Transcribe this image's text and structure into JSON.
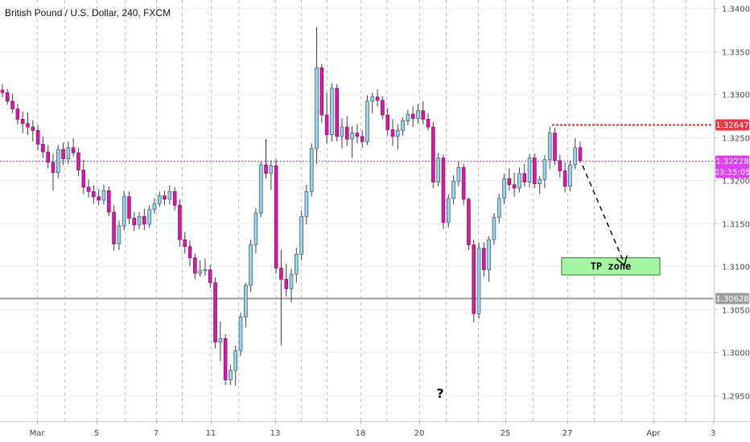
{
  "header": {
    "title": "British Pound / U.S. Dollar, 240, FXCM"
  },
  "annotations": {
    "tp_zone": "TP zone",
    "question": "?"
  },
  "colors": {
    "up_fill": "#9bd1e6",
    "up_border": "#2f5e73",
    "down_fill": "#d41aa6",
    "down_border": "#8a1370",
    "wick": "#444444",
    "target_line": "#e53935",
    "current_line": "#e040fb",
    "support_line": "#9e9e9e",
    "tp_fill": "#a5f5a5",
    "badge_red": "#f23645",
    "badge_magenta": "#e040fb",
    "badge_grey": "#9e9e9e"
  },
  "price_labels": {
    "target": "1.32647",
    "current": "1.32228",
    "countdown": "03:35:05",
    "support": "1.30628"
  },
  "chart_data": {
    "type": "candlestick",
    "title": "British Pound / U.S. Dollar, 240, FXCM",
    "ylim": [
      1.2935,
      1.3405
    ],
    "y_ticks": [
      "1.34000",
      "1.33500",
      "1.33000",
      "1.32500",
      "1.32000",
      "1.31500",
      "1.31000",
      "1.30500",
      "1.30000",
      "1.29500"
    ],
    "x_ticks": [
      "Mar",
      "5",
      "7",
      "11",
      "13",
      "18",
      "20",
      "25",
      "27",
      "Apr",
      "3"
    ],
    "grid": true,
    "levels": {
      "target": 1.32647,
      "current": 1.32228,
      "support": 1.30628
    },
    "tp_zone": {
      "low": 1.309,
      "high": 1.311
    },
    "candles": [
      [
        1.3305,
        1.3312,
        1.3297,
        1.3302
      ],
      [
        1.3302,
        1.3306,
        1.3288,
        1.3292
      ],
      [
        1.3292,
        1.3301,
        1.3278,
        1.3283
      ],
      [
        1.3283,
        1.3289,
        1.3265,
        1.3271
      ],
      [
        1.3271,
        1.328,
        1.3255,
        1.3266
      ],
      [
        1.3266,
        1.3279,
        1.3253,
        1.3262
      ],
      [
        1.3262,
        1.327,
        1.3245,
        1.3258
      ],
      [
        1.3258,
        1.3264,
        1.3235,
        1.3242
      ],
      [
        1.3242,
        1.3251,
        1.3226,
        1.3233
      ],
      [
        1.3233,
        1.3241,
        1.3214,
        1.3221
      ],
      [
        1.3221,
        1.3231,
        1.3188,
        1.3209
      ],
      [
        1.3209,
        1.3241,
        1.3202,
        1.3236
      ],
      [
        1.3236,
        1.3244,
        1.3218,
        1.3225
      ],
      [
        1.3225,
        1.3245,
        1.3219,
        1.3238
      ],
      [
        1.3238,
        1.3249,
        1.3227,
        1.3232
      ],
      [
        1.3232,
        1.3238,
        1.3205,
        1.3212
      ],
      [
        1.3212,
        1.3224,
        1.3184,
        1.3192
      ],
      [
        1.3192,
        1.3201,
        1.318,
        1.3187
      ],
      [
        1.3187,
        1.3194,
        1.3173,
        1.3181
      ],
      [
        1.3181,
        1.319,
        1.3171,
        1.3177
      ],
      [
        1.3177,
        1.3195,
        1.3172,
        1.3188
      ],
      [
        1.3188,
        1.3193,
        1.3158,
        1.3163
      ],
      [
        1.3163,
        1.3171,
        1.3118,
        1.3126
      ],
      [
        1.3126,
        1.3153,
        1.3119,
        1.3147
      ],
      [
        1.3147,
        1.3188,
        1.3142,
        1.3181
      ],
      [
        1.3181,
        1.3187,
        1.3149,
        1.3156
      ],
      [
        1.3156,
        1.3163,
        1.3141,
        1.3148
      ],
      [
        1.3148,
        1.3163,
        1.3143,
        1.3158
      ],
      [
        1.3158,
        1.3167,
        1.3142,
        1.3149
      ],
      [
        1.3149,
        1.3171,
        1.3145,
        1.3166
      ],
      [
        1.3166,
        1.3179,
        1.3161,
        1.3173
      ],
      [
        1.3173,
        1.3187,
        1.3169,
        1.3182
      ],
      [
        1.3182,
        1.3188,
        1.3171,
        1.3178
      ],
      [
        1.3178,
        1.3194,
        1.3172,
        1.3187
      ],
      [
        1.3187,
        1.3192,
        1.3165,
        1.3171
      ],
      [
        1.3171,
        1.3178,
        1.3123,
        1.3131
      ],
      [
        1.3131,
        1.314,
        1.3115,
        1.3123
      ],
      [
        1.3123,
        1.313,
        1.31,
        1.311
      ],
      [
        1.311,
        1.3115,
        1.3085,
        1.3092
      ],
      [
        1.3092,
        1.3107,
        1.3088,
        1.3095
      ],
      [
        1.3095,
        1.3109,
        1.3089,
        1.3096
      ],
      [
        1.3096,
        1.3102,
        1.3075,
        1.3081
      ],
      [
        1.3081,
        1.3087,
        1.3005,
        1.3012
      ],
      [
        1.3012,
        1.3036,
        1.299,
        1.3016
      ],
      [
        1.3016,
        1.3021,
        1.2962,
        1.2968
      ],
      [
        1.2968,
        1.2986,
        1.2962,
        1.2979
      ],
      [
        1.2979,
        1.3008,
        1.2961,
        1.3002
      ],
      [
        1.3002,
        1.3046,
        1.2996,
        1.3041
      ],
      [
        1.3041,
        1.3081,
        1.3029,
        1.3078
      ],
      [
        1.3078,
        1.3131,
        1.307,
        1.3125
      ],
      [
        1.3125,
        1.3168,
        1.3115,
        1.3162
      ],
      [
        1.3162,
        1.3222,
        1.3157,
        1.3218
      ],
      [
        1.3218,
        1.3248,
        1.3202,
        1.3208
      ],
      [
        1.3208,
        1.3223,
        1.3189,
        1.3217
      ],
      [
        1.3217,
        1.3225,
        1.3092,
        1.3098
      ],
      [
        1.3098,
        1.3119,
        1.3008,
        1.3085
      ],
      [
        1.3085,
        1.3103,
        1.3065,
        1.3074
      ],
      [
        1.3074,
        1.3097,
        1.3058,
        1.3091
      ],
      [
        1.3091,
        1.3122,
        1.3081,
        1.3114
      ],
      [
        1.3114,
        1.3165,
        1.3107,
        1.3158
      ],
      [
        1.3158,
        1.3195,
        1.3149,
        1.3187
      ],
      [
        1.3187,
        1.3243,
        1.3181,
        1.3237
      ],
      [
        1.3237,
        1.3378,
        1.3219,
        1.3331
      ],
      [
        1.3331,
        1.3335,
        1.3267,
        1.3276
      ],
      [
        1.3276,
        1.3302,
        1.3243,
        1.3253
      ],
      [
        1.3253,
        1.3313,
        1.3245,
        1.3307
      ],
      [
        1.3307,
        1.3312,
        1.3245,
        1.3251
      ],
      [
        1.3251,
        1.3272,
        1.3237,
        1.3262
      ],
      [
        1.3262,
        1.3275,
        1.324,
        1.3248
      ],
      [
        1.3248,
        1.3263,
        1.3226,
        1.3255
      ],
      [
        1.3255,
        1.3265,
        1.3243,
        1.3251
      ],
      [
        1.3251,
        1.3258,
        1.3238,
        1.3245
      ],
      [
        1.3245,
        1.3299,
        1.3241,
        1.3292
      ],
      [
        1.3292,
        1.3302,
        1.3278,
        1.3297
      ],
      [
        1.3297,
        1.3306,
        1.3286,
        1.3293
      ],
      [
        1.3293,
        1.3298,
        1.3271,
        1.3276
      ],
      [
        1.3276,
        1.3284,
        1.3252,
        1.3259
      ],
      [
        1.3259,
        1.3271,
        1.324,
        1.3251
      ],
      [
        1.3251,
        1.3265,
        1.3236,
        1.3258
      ],
      [
        1.3258,
        1.3273,
        1.3252,
        1.3269
      ],
      [
        1.3269,
        1.3282,
        1.3264,
        1.3277
      ],
      [
        1.3277,
        1.3286,
        1.3262,
        1.3272
      ],
      [
        1.3272,
        1.3289,
        1.3266,
        1.3281
      ],
      [
        1.3281,
        1.3292,
        1.3265,
        1.3271
      ],
      [
        1.3271,
        1.3278,
        1.3258,
        1.3262
      ],
      [
        1.3262,
        1.3268,
        1.3191,
        1.3198
      ],
      [
        1.3198,
        1.3232,
        1.3193,
        1.3226
      ],
      [
        1.3226,
        1.323,
        1.3143,
        1.3151
      ],
      [
        1.3151,
        1.3184,
        1.3145,
        1.3179
      ],
      [
        1.3179,
        1.3206,
        1.3172,
        1.3199
      ],
      [
        1.3199,
        1.3222,
        1.3193,
        1.3215
      ],
      [
        1.3215,
        1.3219,
        1.3171,
        1.3178
      ],
      [
        1.3178,
        1.318,
        1.3119,
        1.3125
      ],
      [
        1.3125,
        1.3131,
        1.3035,
        1.3045
      ],
      [
        1.3045,
        1.3128,
        1.3039,
        1.3121
      ],
      [
        1.3121,
        1.3128,
        1.3088,
        1.3096
      ],
      [
        1.3096,
        1.3135,
        1.3082,
        1.3131
      ],
      [
        1.3131,
        1.3162,
        1.3125,
        1.3157
      ],
      [
        1.3157,
        1.3184,
        1.315,
        1.3179
      ],
      [
        1.3179,
        1.3208,
        1.3172,
        1.3202
      ],
      [
        1.3202,
        1.3214,
        1.3188,
        1.3195
      ],
      [
        1.3195,
        1.3209,
        1.3181,
        1.3191
      ],
      [
        1.3191,
        1.3215,
        1.3186,
        1.3208
      ],
      [
        1.3208,
        1.3219,
        1.3193,
        1.3198
      ],
      [
        1.3198,
        1.3231,
        1.3192,
        1.3226
      ],
      [
        1.3226,
        1.3231,
        1.3191,
        1.3196
      ],
      [
        1.3196,
        1.3205,
        1.3184,
        1.3201
      ],
      [
        1.3201,
        1.3229,
        1.3191,
        1.3224
      ],
      [
        1.3224,
        1.3262,
        1.3213,
        1.3255
      ],
      [
        1.3255,
        1.3261,
        1.3218,
        1.3223
      ],
      [
        1.3223,
        1.323,
        1.3203,
        1.3211
      ],
      [
        1.3211,
        1.3221,
        1.3186,
        1.3193
      ],
      [
        1.3193,
        1.3223,
        1.3187,
        1.3218
      ],
      [
        1.3218,
        1.3249,
        1.3213,
        1.3238
      ],
      [
        1.3238,
        1.3245,
        1.322,
        1.3223
      ]
    ]
  }
}
